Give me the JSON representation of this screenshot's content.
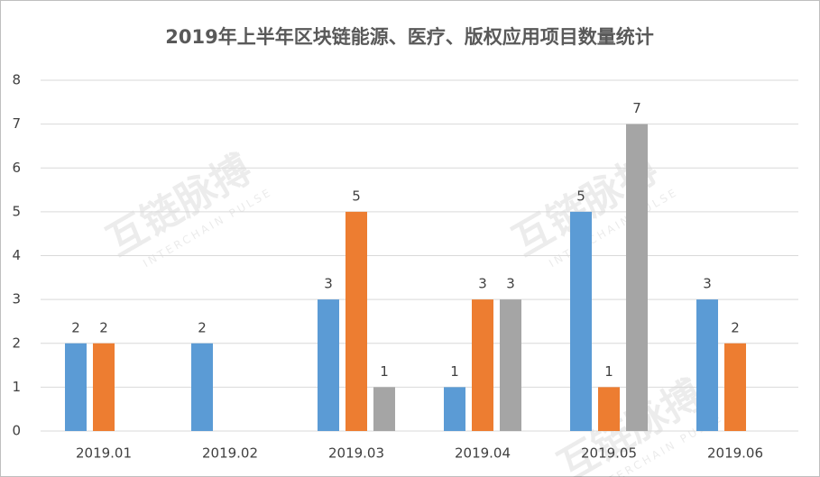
{
  "chart_data": {
    "type": "bar",
    "title": "2019年上半年区块链能源、医疗、版权应用项目数量统计",
    "categories": [
      "2019.01",
      "2019.02",
      "2019.03",
      "2019.04",
      "2019.05",
      "2019.06"
    ],
    "series": [
      {
        "color": "#5b9bd5",
        "values": [
          2,
          2,
          3,
          1,
          5,
          3
        ]
      },
      {
        "color": "#ed7d31",
        "values": [
          2,
          null,
          5,
          3,
          1,
          2
        ]
      },
      {
        "color": "#a5a5a5",
        "values": [
          null,
          null,
          1,
          3,
          7,
          null
        ]
      }
    ],
    "ylim": [
      0,
      8
    ],
    "yticks": [
      0,
      1,
      2,
      3,
      4,
      5,
      6,
      7,
      8
    ],
    "grid": true,
    "watermark": {
      "text": "互链脉搏",
      "subtext": "INTERCHAIN PULSE"
    }
  }
}
